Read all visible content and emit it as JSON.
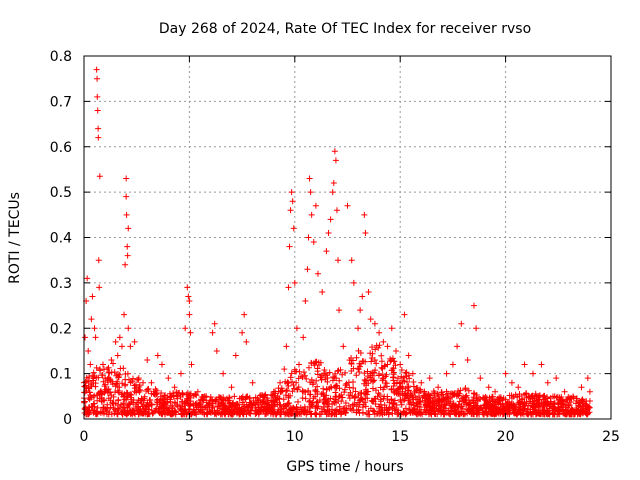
{
  "chart_data": {
    "type": "scatter",
    "title": "Day 268 of 2024, Rate Of TEC Index for receiver rvso",
    "xlabel": "GPS time / hours",
    "ylabel": "ROTI / TECUs",
    "xlim": [
      0,
      25
    ],
    "ylim": [
      0,
      0.8
    ],
    "xticks": [
      "0",
      "5",
      "10",
      "15",
      "20",
      "25"
    ],
    "yticks": [
      "0",
      "0.1",
      "0.2",
      "0.3",
      "0.4",
      "0.5",
      "0.6",
      "0.7",
      "0.8"
    ],
    "grid": true,
    "legend": "none",
    "marker": "+",
    "color": "#ff0000",
    "series": [
      {
        "points": [
          [
            0.05,
            0.18
          ],
          [
            0.1,
            0.26
          ],
          [
            0.15,
            0.31
          ],
          [
            0.2,
            0.15
          ],
          [
            0.3,
            0.12
          ],
          [
            0.35,
            0.22
          ],
          [
            0.4,
            0.27
          ],
          [
            0.5,
            0.2
          ],
          [
            0.55,
            0.18
          ],
          [
            0.6,
            0.77
          ],
          [
            0.62,
            0.75
          ],
          [
            0.63,
            0.71
          ],
          [
            0.65,
            0.68
          ],
          [
            0.67,
            0.64
          ],
          [
            0.68,
            0.62
          ],
          [
            0.7,
            0.35
          ],
          [
            0.72,
            0.29
          ],
          [
            0.75,
            0.535
          ],
          [
            0.9,
            0.12
          ],
          [
            1.0,
            0.09
          ],
          [
            1.1,
            0.11
          ],
          [
            1.3,
            0.13
          ],
          [
            1.5,
            0.17
          ],
          [
            1.6,
            0.14
          ],
          [
            1.7,
            0.18
          ],
          [
            1.8,
            0.16
          ],
          [
            1.9,
            0.23
          ],
          [
            1.95,
            0.34
          ],
          [
            2.0,
            0.53
          ],
          [
            2.0,
            0.49
          ],
          [
            2.02,
            0.45
          ],
          [
            2.05,
            0.38
          ],
          [
            2.07,
            0.36
          ],
          [
            2.1,
            0.42
          ],
          [
            2.1,
            0.2
          ],
          [
            2.2,
            0.16
          ],
          [
            2.4,
            0.17
          ],
          [
            2.6,
            0.09
          ],
          [
            2.8,
            0.08
          ],
          [
            3.0,
            0.13
          ],
          [
            3.2,
            0.08
          ],
          [
            3.5,
            0.14
          ],
          [
            3.7,
            0.12
          ],
          [
            4.0,
            0.09
          ],
          [
            4.3,
            0.07
          ],
          [
            4.6,
            0.1
          ],
          [
            4.8,
            0.2
          ],
          [
            4.9,
            0.29
          ],
          [
            4.95,
            0.27
          ],
          [
            5.0,
            0.26
          ],
          [
            5.0,
            0.23
          ],
          [
            5.05,
            0.19
          ],
          [
            5.1,
            0.12
          ],
          [
            5.4,
            0.06
          ],
          [
            5.8,
            0.05
          ],
          [
            6.1,
            0.19
          ],
          [
            6.2,
            0.21
          ],
          [
            6.3,
            0.15
          ],
          [
            6.6,
            0.1
          ],
          [
            7.0,
            0.07
          ],
          [
            7.2,
            0.14
          ],
          [
            7.5,
            0.19
          ],
          [
            7.6,
            0.23
          ],
          [
            7.7,
            0.17
          ],
          [
            8.0,
            0.08
          ],
          [
            8.5,
            0.05
          ],
          [
            9.0,
            0.06
          ],
          [
            9.3,
            0.08
          ],
          [
            9.5,
            0.11
          ],
          [
            9.6,
            0.16
          ],
          [
            9.7,
            0.29
          ],
          [
            9.75,
            0.38
          ],
          [
            9.8,
            0.46
          ],
          [
            9.85,
            0.5
          ],
          [
            9.9,
            0.48
          ],
          [
            9.95,
            0.42
          ],
          [
            10.0,
            0.3
          ],
          [
            10.1,
            0.2
          ],
          [
            10.2,
            0.12
          ],
          [
            10.4,
            0.18
          ],
          [
            10.5,
            0.26
          ],
          [
            10.6,
            0.33
          ],
          [
            10.65,
            0.4
          ],
          [
            10.7,
            0.53
          ],
          [
            10.75,
            0.5
          ],
          [
            10.8,
            0.45
          ],
          [
            10.9,
            0.39
          ],
          [
            11.0,
            0.47
          ],
          [
            11.1,
            0.32
          ],
          [
            11.3,
            0.28
          ],
          [
            11.5,
            0.37
          ],
          [
            11.6,
            0.41
          ],
          [
            11.7,
            0.44
          ],
          [
            11.8,
            0.5
          ],
          [
            11.85,
            0.52
          ],
          [
            11.9,
            0.59
          ],
          [
            11.95,
            0.57
          ],
          [
            12.0,
            0.46
          ],
          [
            12.05,
            0.35
          ],
          [
            12.1,
            0.24
          ],
          [
            12.3,
            0.16
          ],
          [
            12.5,
            0.47
          ],
          [
            12.7,
            0.35
          ],
          [
            12.8,
            0.3
          ],
          [
            13.0,
            0.2
          ],
          [
            13.1,
            0.24
          ],
          [
            13.2,
            0.27
          ],
          [
            13.3,
            0.45
          ],
          [
            13.35,
            0.41
          ],
          [
            13.5,
            0.28
          ],
          [
            13.6,
            0.22
          ],
          [
            13.8,
            0.21
          ],
          [
            14.0,
            0.19
          ],
          [
            14.2,
            0.17
          ],
          [
            14.4,
            0.16
          ],
          [
            14.6,
            0.2
          ],
          [
            14.8,
            0.15
          ],
          [
            15.0,
            0.12
          ],
          [
            15.2,
            0.23
          ],
          [
            15.4,
            0.14
          ],
          [
            15.6,
            0.1
          ],
          [
            16.0,
            0.08
          ],
          [
            16.4,
            0.09
          ],
          [
            16.8,
            0.07
          ],
          [
            17.2,
            0.1
          ],
          [
            17.5,
            0.12
          ],
          [
            17.7,
            0.16
          ],
          [
            17.9,
            0.21
          ],
          [
            18.2,
            0.13
          ],
          [
            18.5,
            0.25
          ],
          [
            18.6,
            0.2
          ],
          [
            18.8,
            0.09
          ],
          [
            19.2,
            0.07
          ],
          [
            19.5,
            0.06
          ],
          [
            20.0,
            0.1
          ],
          [
            20.3,
            0.08
          ],
          [
            20.6,
            0.07
          ],
          [
            20.9,
            0.12
          ],
          [
            21.3,
            0.1
          ],
          [
            21.7,
            0.12
          ],
          [
            22.0,
            0.08
          ],
          [
            22.4,
            0.09
          ],
          [
            22.8,
            0.06
          ],
          [
            23.2,
            0.05
          ],
          [
            23.6,
            0.07
          ],
          [
            23.9,
            0.09
          ],
          [
            24.0,
            0.06
          ]
        ],
        "band": [
          [
            0,
            0.08
          ],
          [
            1,
            0.12
          ],
          [
            2,
            0.1
          ],
          [
            3,
            0.06
          ],
          [
            4,
            0.05
          ],
          [
            5,
            0.05
          ],
          [
            6,
            0.04
          ],
          [
            7,
            0.04
          ],
          [
            8,
            0.04
          ],
          [
            9,
            0.05
          ],
          [
            10,
            0.1
          ],
          [
            11,
            0.12
          ],
          [
            12,
            0.1
          ],
          [
            13,
            0.14
          ],
          [
            14,
            0.16
          ],
          [
            15,
            0.11
          ],
          [
            16,
            0.06
          ],
          [
            17,
            0.05
          ],
          [
            18,
            0.06
          ],
          [
            19,
            0.04
          ],
          [
            20,
            0.04
          ],
          [
            21,
            0.05
          ],
          [
            22,
            0.04
          ],
          [
            23,
            0.04
          ],
          [
            24,
            0.03
          ]
        ]
      }
    ]
  }
}
